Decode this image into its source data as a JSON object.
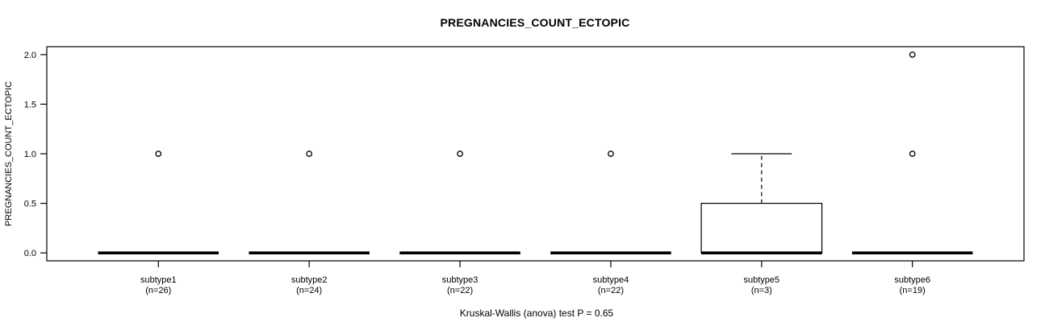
{
  "figure": {
    "title": "PREGNANCIES_COUNT_ECTOPIC",
    "caption": "Kruskal-Wallis (anova) test P = 0.65",
    "colors": {
      "foreground": "#000000",
      "background": "#ffffff"
    }
  },
  "chart_data": {
    "type": "boxplot",
    "title": "PREGNANCIES_COUNT_ECTOPIC",
    "xlabel": "",
    "ylabel": "PREGNANCIES_COUNT_ECTOPIC",
    "caption": "Kruskal-Wallis (anova) test P = 0.65",
    "ylim": [
      0,
      2
    ],
    "yticks": [
      0.0,
      0.5,
      1.0,
      1.5,
      2.0
    ],
    "ytick_labels": [
      "0.0",
      "0.5",
      "1.0",
      "1.5",
      "2.0"
    ],
    "grid": false,
    "legend": false,
    "groups": [
      {
        "label": "subtype1",
        "sublabel": "(n=26)",
        "n": 26,
        "whisker_low": 0,
        "q1": 0,
        "median": 0,
        "q3": 0,
        "whisker_high": 0,
        "outliers": [
          1
        ]
      },
      {
        "label": "subtype2",
        "sublabel": "(n=24)",
        "n": 24,
        "whisker_low": 0,
        "q1": 0,
        "median": 0,
        "q3": 0,
        "whisker_high": 0,
        "outliers": [
          1
        ]
      },
      {
        "label": "subtype3",
        "sublabel": "(n=22)",
        "n": 22,
        "whisker_low": 0,
        "q1": 0,
        "median": 0,
        "q3": 0,
        "whisker_high": 0,
        "outliers": [
          1
        ]
      },
      {
        "label": "subtype4",
        "sublabel": "(n=22)",
        "n": 22,
        "whisker_low": 0,
        "q1": 0,
        "median": 0,
        "q3": 0,
        "whisker_high": 0,
        "outliers": [
          1
        ]
      },
      {
        "label": "subtype5",
        "sublabel": "(n=3)",
        "n": 3,
        "whisker_low": 0,
        "q1": 0,
        "median": 0,
        "q3": 0.5,
        "whisker_high": 1,
        "outliers": []
      },
      {
        "label": "subtype6",
        "sublabel": "(n=19)",
        "n": 19,
        "whisker_low": 0,
        "q1": 0,
        "median": 0,
        "q3": 0,
        "whisker_high": 0,
        "outliers": [
          1,
          2
        ]
      }
    ]
  }
}
